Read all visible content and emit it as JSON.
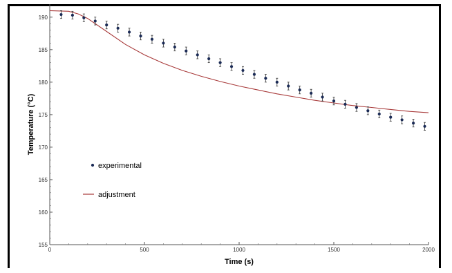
{
  "chart_data": {
    "type": "scatter",
    "title": "",
    "xlabel": "Time (s)",
    "ylabel": "Temperature (°C)",
    "xlim": [
      0,
      2000
    ],
    "ylim": [
      155,
      192
    ],
    "x_ticks": [
      0,
      500,
      1000,
      1500,
      2000
    ],
    "y_ticks": [
      155,
      160,
      165,
      170,
      175,
      180,
      185,
      190
    ],
    "grid": false,
    "legend_position": "left-middle",
    "series": [
      {
        "name": "experimental",
        "kind": "points_with_error_bars",
        "color": "#1a2a55",
        "x": [
          60,
          120,
          180,
          240,
          300,
          360,
          420,
          480,
          540,
          600,
          660,
          720,
          780,
          840,
          900,
          960,
          1020,
          1080,
          1140,
          1200,
          1260,
          1320,
          1380,
          1440,
          1500,
          1560,
          1620,
          1680,
          1740,
          1800,
          1860,
          1920,
          1980
        ],
        "y": [
          190.4,
          190.3,
          189.9,
          189.4,
          188.8,
          188.3,
          187.7,
          187.1,
          186.6,
          186.0,
          185.4,
          184.8,
          184.2,
          183.6,
          183.0,
          182.4,
          181.8,
          181.2,
          180.6,
          180.0,
          179.4,
          178.8,
          178.3,
          177.7,
          177.1,
          176.6,
          176.1,
          175.6,
          175.1,
          174.6,
          174.2,
          173.7,
          173.2
        ],
        "error": 0.6
      },
      {
        "name": "adjustment",
        "kind": "line",
        "color": "#a83a3a",
        "x": [
          0,
          100,
          150,
          200,
          300,
          400,
          500,
          600,
          700,
          800,
          900,
          1000,
          1100,
          1200,
          1300,
          1400,
          1500,
          1600,
          1700,
          1800,
          1900,
          2000
        ],
        "y": [
          191.0,
          190.9,
          190.5,
          189.8,
          187.8,
          185.8,
          184.2,
          182.9,
          181.8,
          180.9,
          180.1,
          179.4,
          178.8,
          178.2,
          177.7,
          177.2,
          176.8,
          176.4,
          176.1,
          175.8,
          175.5,
          175.3
        ]
      }
    ]
  }
}
